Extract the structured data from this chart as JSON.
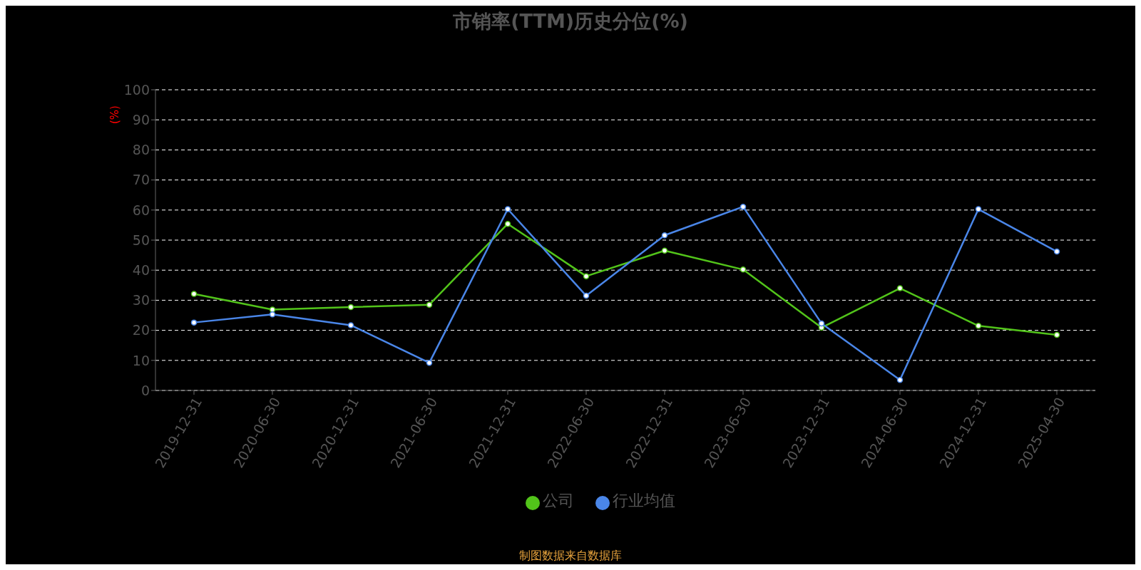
{
  "chart_data": {
    "type": "line",
    "title": "市销率(TTM)历史分位(%)",
    "ylabel": "(%)",
    "categories": [
      "2019-12-31",
      "2020-06-30",
      "2020-12-31",
      "2021-06-30",
      "2021-12-31",
      "2022-06-30",
      "2022-12-31",
      "2023-06-30",
      "2023-12-31",
      "2024-06-30",
      "2024-12-31",
      "2025-04-30"
    ],
    "series": [
      {
        "name": "公司",
        "color": "#52c41a",
        "values": [
          32.1,
          26.9,
          27.7,
          28.5,
          55.4,
          38.0,
          46.5,
          40.2,
          20.9,
          34.0,
          21.5,
          18.5
        ]
      },
      {
        "name": "行业均值",
        "color": "#4a86e8",
        "values": [
          22.6,
          25.3,
          21.7,
          9.2,
          60.3,
          31.5,
          51.6,
          61.1,
          22.3,
          3.5,
          60.3,
          46.2
        ]
      }
    ],
    "ylim": [
      0,
      100
    ],
    "yticks": [
      0,
      10,
      20,
      30,
      40,
      50,
      60,
      70,
      80,
      90,
      100
    ],
    "grid": "y",
    "legend": "bottom",
    "marker": "circle",
    "line_style": "solid",
    "annotations": [
      "制图数据来自数据库"
    ]
  }
}
